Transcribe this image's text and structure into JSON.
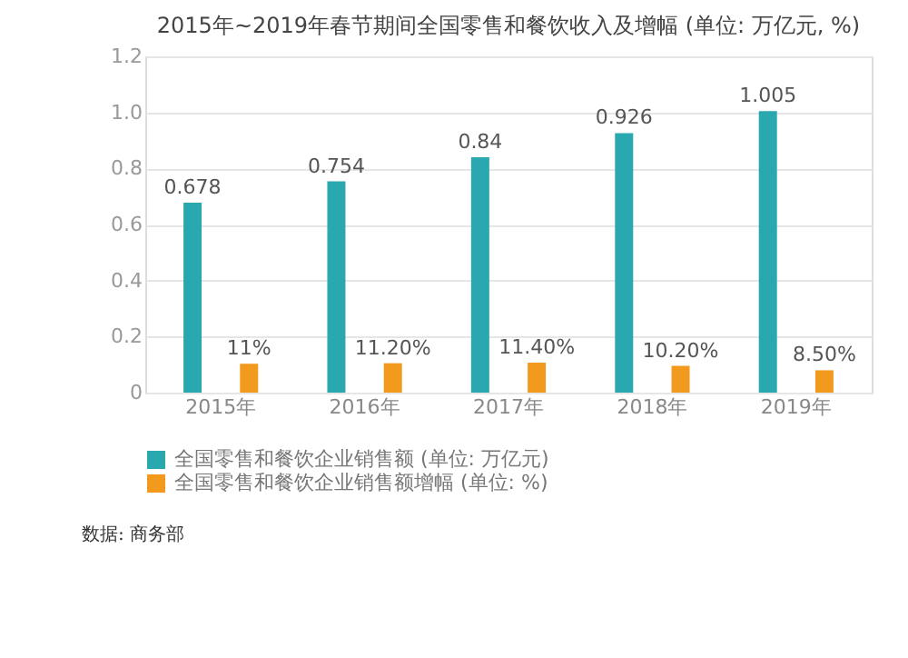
{
  "chart_data": {
    "type": "bar",
    "title": "2015年~2019年春节期间全国零售和餐饮收入及增幅 (单位: 万亿元, %)",
    "categories": [
      "2015年",
      "2016年",
      "2017年",
      "2018年",
      "2019年"
    ],
    "series": [
      {
        "name": "全国零售和餐饮企业销售额 (单位: 万亿元)",
        "color": "#2aa8b0",
        "values": [
          0.678,
          0.754,
          0.84,
          0.926,
          1.005
        ],
        "value_labels": [
          "0.678",
          "0.754",
          "0.84",
          "0.926",
          "1.005"
        ]
      },
      {
        "name": "全国零售和餐饮企业销售额增幅 (单位: %)",
        "color": "#f29a1e",
        "axis": "y2",
        "values": [
          11,
          11.2,
          11.4,
          10.2,
          8.5
        ],
        "value_labels": [
          "11%",
          "11.20%",
          "11.40%",
          "10.20%",
          "8.50%"
        ]
      }
    ],
    "ylim": [
      0,
      1.2
    ],
    "yticks": [
      0,
      0.2,
      0.4,
      0.6,
      0.8,
      {
        "value": 1,
        "label": "1.0"
      },
      1.2
    ],
    "y2lim": [
      0,
      128
    ],
    "grid": "y",
    "legend": "bottom",
    "annotations": [
      "数据: 商务部"
    ]
  }
}
